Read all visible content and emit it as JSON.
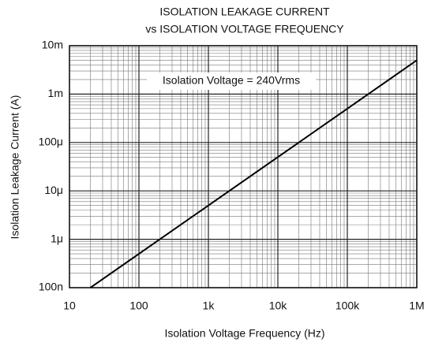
{
  "chart_data": {
    "type": "line",
    "title": "ISOLATION LEAKAGE CURRENT",
    "subtitle": "vs ISOLATION VOLTAGE FREQUENCY",
    "x_label": "Isolation Voltage Frequency (Hz)",
    "y_label": "Isolation Leakage Current (A)",
    "annotation": "Isolation Voltage = 240Vrms",
    "x": [
      20,
      1000000
    ],
    "series": [
      {
        "color": "#000000",
        "values": [
          1e-07,
          0.005
        ]
      }
    ],
    "x_log": true,
    "y_log": true,
    "grid": true,
    "xlim": [
      10,
      1000000
    ],
    "xticks": [
      10,
      100,
      {
        "value": 1000,
        "label": "1k"
      },
      {
        "value": 10000,
        "label": "10k"
      },
      {
        "value": 100000,
        "label": "100k"
      },
      {
        "value": 1000000,
        "label": "1M"
      }
    ],
    "ylim": [
      1e-07,
      0.01
    ],
    "yticks": [
      {
        "value": 1e-07,
        "label": "100n"
      },
      {
        "value": 1e-06,
        "label": "1μ"
      },
      {
        "value": 1e-05,
        "label": "10μ"
      },
      {
        "value": 0.0001,
        "label": "100μ"
      },
      {
        "value": 0.001,
        "label": "1m"
      },
      {
        "value": 0.01,
        "label": "10m"
      }
    ]
  }
}
